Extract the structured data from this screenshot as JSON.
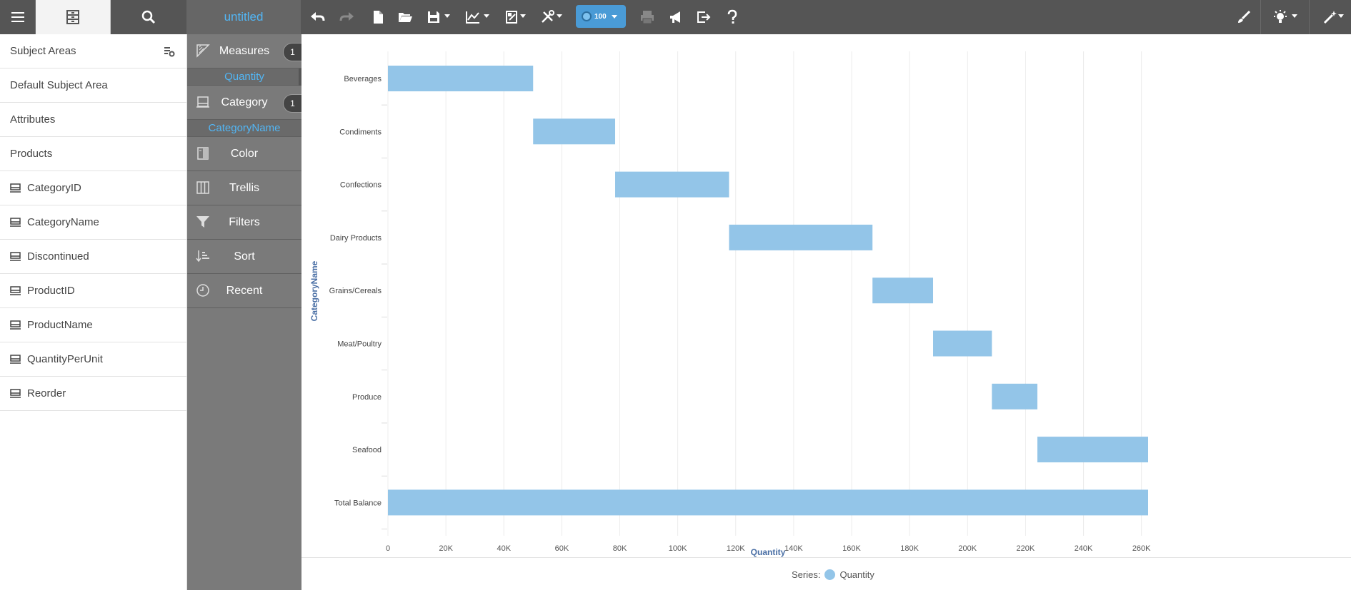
{
  "toolbar": {
    "title": "untitled",
    "badge_value": "100"
  },
  "left_panel": {
    "header": "Subject Areas",
    "subject_area": "Default Subject Area",
    "section_attributes": "Attributes",
    "table_name": "Products",
    "fields": [
      "CategoryID",
      "CategoryName",
      "Discontinued",
      "ProductID",
      "ProductName",
      "QuantityPerUnit",
      "Reorder"
    ]
  },
  "middle_panel": {
    "measures_label": "Measures",
    "measures_count": "1",
    "measure_field": "Quantity",
    "category_label": "Category",
    "category_count": "1",
    "category_field": "CategoryName",
    "color_label": "Color",
    "trellis_label": "Trellis",
    "filters_label": "Filters",
    "sort_label": "Sort",
    "recent_label": "Recent"
  },
  "chart_data": {
    "type": "bar",
    "orientation": "horizontal-waterfall",
    "categories": [
      "Beverages",
      "Condiments",
      "Confections",
      "Dairy Products",
      "Grains/Cereals",
      "Meat/Poultry",
      "Produce",
      "Seafood",
      "Total Balance"
    ],
    "ranges": [
      [
        0,
        50100
      ],
      [
        50100,
        78400
      ],
      [
        78400,
        117700
      ],
      [
        117700,
        167200
      ],
      [
        167200,
        188100
      ],
      [
        188100,
        208400
      ],
      [
        208400,
        224100
      ],
      [
        224100,
        262300
      ],
      [
        0,
        262300
      ]
    ],
    "xlabel": "Quantity",
    "ylabel": "CategoryName",
    "xlim": [
      0,
      262300
    ],
    "xticks": [
      0,
      20000,
      40000,
      60000,
      80000,
      100000,
      120000,
      140000,
      160000,
      180000,
      200000,
      220000,
      240000,
      260000
    ],
    "xtick_labels": [
      "0",
      "20K",
      "40K",
      "60K",
      "80K",
      "100K",
      "120K",
      "140K",
      "160K",
      "180K",
      "200K",
      "220K",
      "240K",
      "260K"
    ],
    "bar_color": "#93c5e8",
    "grid": true,
    "legend": {
      "prefix": "Series:",
      "entries": [
        "Quantity"
      ],
      "position": "bottom"
    }
  }
}
